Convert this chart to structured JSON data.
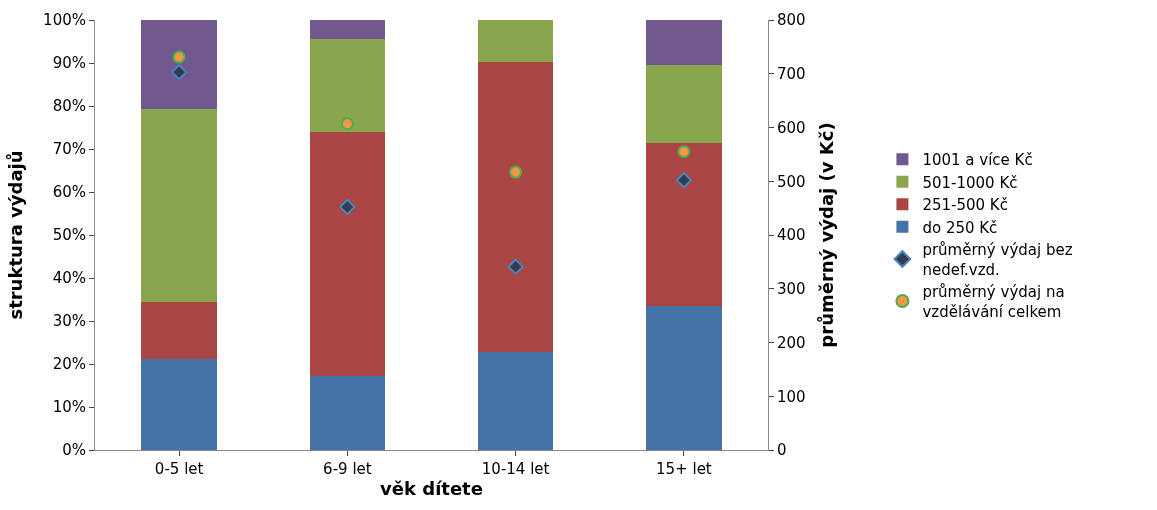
{
  "chart_data": {
    "type": "bar",
    "stacked": true,
    "xlabel": "věk dítete",
    "ylabel": "struktura výdajů",
    "y2label": "průměrný výdaj (v Kč)",
    "categories": [
      "0-5 let",
      "6-9 let",
      "10-14 let",
      "15+ let"
    ],
    "series": [
      {
        "name": "do 250 Kč",
        "color": "#4572a7",
        "values": [
          21.1,
          17.3,
          22.7,
          33.5
        ]
      },
      {
        "name": "251-500 Kč",
        "color": "#aa4643",
        "values": [
          13.3,
          56.7,
          67.5,
          37.9
        ]
      },
      {
        "name": "501-1000 Kč",
        "color": "#89a54e",
        "values": [
          44.8,
          21.5,
          9.8,
          18.1
        ]
      },
      {
        "name": "1001 a více Kč",
        "color": "#71588f",
        "values": [
          20.8,
          4.5,
          0,
          10.5
        ]
      },
      {
        "name": "průměrný výdaj bez\nnedef.vzd.",
        "type": "scatter",
        "axis": "y2",
        "marker": "diamond",
        "color": "#2f3e50",
        "values": [
          703,
          452,
          341,
          502
        ]
      },
      {
        "name": "průměrný výdaj na\nvzdělávání celkem",
        "type": "scatter",
        "axis": "y2",
        "marker": "circle",
        "color": "#f79646",
        "values": [
          731,
          607,
          517,
          555
        ]
      }
    ],
    "ylim": [
      0,
      100
    ],
    "yticks": [
      {
        "value": 0,
        "label": "0%"
      },
      {
        "value": 10,
        "label": "10%"
      },
      {
        "value": 20,
        "label": "20%"
      },
      {
        "value": 30,
        "label": "30%"
      },
      {
        "value": 40,
        "label": "40%"
      },
      {
        "value": 50,
        "label": "50%"
      },
      {
        "value": 60,
        "label": "60%"
      },
      {
        "value": 70,
        "label": "70%"
      },
      {
        "value": 80,
        "label": "80%"
      },
      {
        "value": 90,
        "label": "90%"
      },
      {
        "value": 100,
        "label": "100%"
      }
    ],
    "y2lim": [
      0,
      800
    ],
    "y2ticks": [
      0,
      100,
      200,
      300,
      400,
      500,
      600,
      700,
      800
    ],
    "legend": "right"
  }
}
